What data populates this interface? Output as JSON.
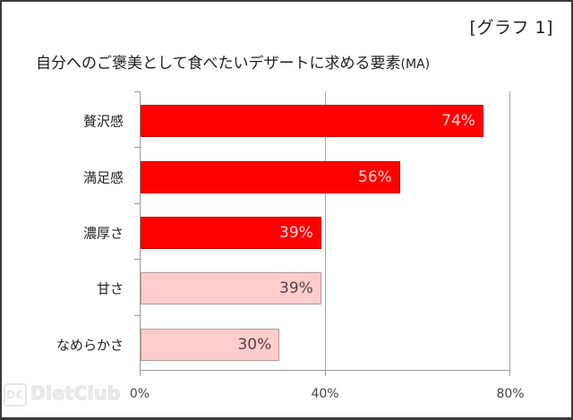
{
  "header": {
    "graph_label": "[グラフ 1]",
    "title": "自分へのご褒美として食べたいデザートに求める要素",
    "title_suffix": "(MA)"
  },
  "watermark": {
    "icon_text": "DC",
    "text": "DietClub"
  },
  "colors": {
    "strong_bar": "#ff0000",
    "light_bar": "#ffcccc",
    "gridline": "#a8a8a8"
  },
  "chart_data": {
    "type": "bar",
    "orientation": "horizontal",
    "title": "自分へのご褒美として食べたいデザートに求める要素(MA)",
    "subtitle": "[グラフ 1]",
    "categories": [
      "贅沢感",
      "満足感",
      "濃厚さ",
      "甘さ",
      "なめらかさ"
    ],
    "values": [
      74,
      56,
      39,
      39,
      30
    ],
    "value_labels": [
      "74%",
      "56%",
      "39%",
      "39%",
      "30%"
    ],
    "bar_colors": [
      "#ff0000",
      "#ff0000",
      "#ff0000",
      "#ffcccc",
      "#ffcccc"
    ],
    "xlabel": "",
    "ylabel": "",
    "xlim": [
      0,
      80
    ],
    "x_ticks": [
      "0%",
      "40%",
      "80%"
    ],
    "grid": "vertical at 40% and 80%",
    "legend": "none",
    "unit": "%"
  }
}
